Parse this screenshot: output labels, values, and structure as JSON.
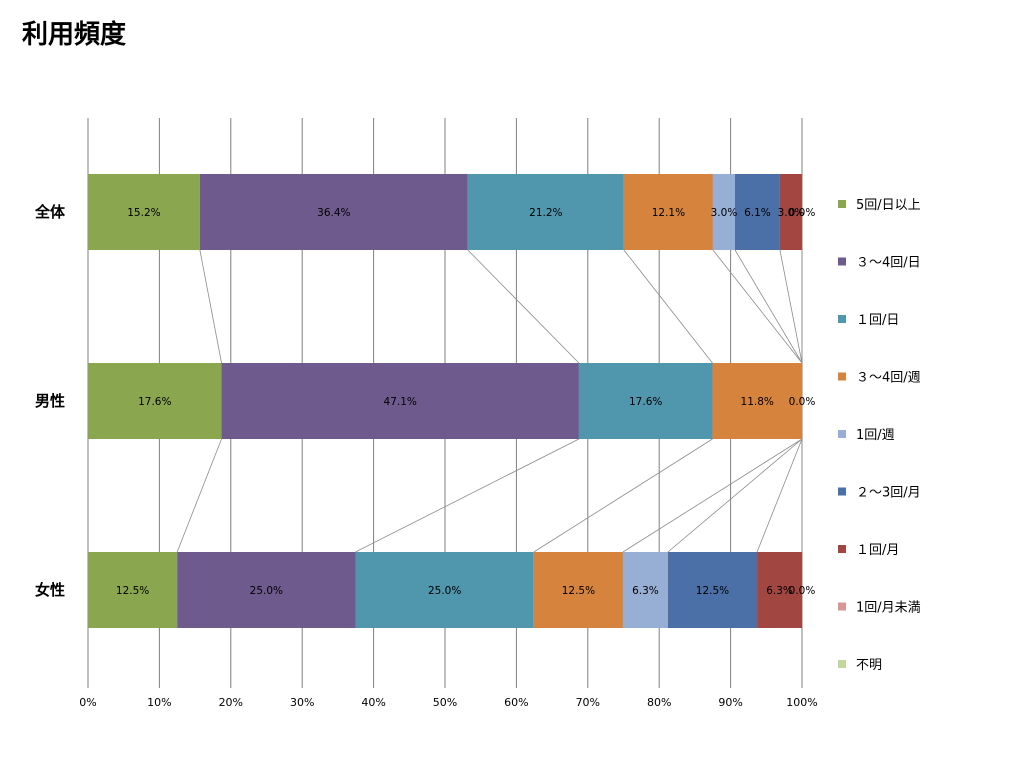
{
  "chart_title": "利用頻度",
  "chart_data": {
    "type": "bar",
    "orientation": "horizontal",
    "stacked": "percent",
    "title": "利用頻度",
    "categories": [
      "全体",
      "男性",
      "女性"
    ],
    "series": [
      {
        "name": "5回/日以上",
        "color": "#8aa64e",
        "values": [
          15.2,
          17.6,
          12.5
        ]
      },
      {
        "name": "３～4回/日",
        "color": "#6e5a8d",
        "values": [
          36.4,
          47.1,
          25.0
        ]
      },
      {
        "name": "１回/日",
        "color": "#5097ae",
        "values": [
          21.2,
          17.6,
          25.0
        ]
      },
      {
        "name": "３～4回/週",
        "color": "#d5833d",
        "values": [
          12.1,
          11.8,
          12.5
        ]
      },
      {
        "name": "1回/週",
        "color": "#97aed5",
        "values": [
          3.0,
          0.0,
          6.3
        ]
      },
      {
        "name": "２～3回/月",
        "color": "#4b6fa7",
        "values": [
          6.1,
          0.0,
          12.5
        ]
      },
      {
        "name": "１回/月",
        "color": "#a24642",
        "values": [
          3.0,
          0.0,
          6.3
        ]
      },
      {
        "name": "1回/月未満",
        "color": "#d99694",
        "values": [
          0.0,
          0.0,
          0.0
        ]
      },
      {
        "name": "不明",
        "color": "#c3d69b",
        "values": [
          0.0,
          0.0,
          0.0
        ]
      }
    ],
    "xlim": [
      0,
      100
    ],
    "xticks": [
      "0%",
      "10%",
      "20%",
      "30%",
      "40%",
      "50%",
      "60%",
      "70%",
      "80%",
      "90%",
      "100%"
    ],
    "grid": true,
    "series_lines": true,
    "legend_position": "right"
  }
}
